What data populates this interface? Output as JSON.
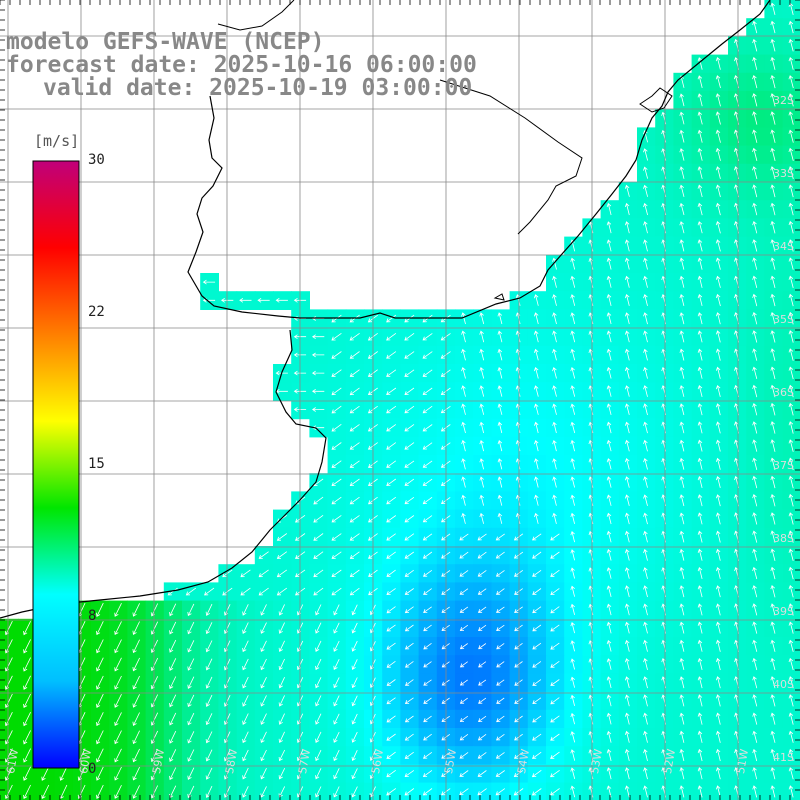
{
  "title": {
    "model": "modelo GEFS-WAVE (NCEP)",
    "forecast": "forecast date: 2025-10-16 06:00:00",
    "valid": "valid date: 2025-10-19 03:00:00"
  },
  "colorbar": {
    "unit": "[m/s]",
    "min": 0,
    "max": 30,
    "ticks": [
      "30",
      "22",
      "15",
      "8",
      "0"
    ],
    "tick_values": [
      30,
      22,
      15,
      8,
      0
    ],
    "colors": [
      "#0000ff",
      "#00bfff",
      "#00ffff",
      "#00e600",
      "#ffff00",
      "#ff7f00",
      "#ff0000",
      "#c0007a"
    ]
  },
  "axes": {
    "lat_labels": [
      "32S",
      "33S",
      "34S",
      "35S",
      "36S",
      "37S",
      "38S",
      "39S",
      "40S",
      "41S"
    ],
    "lon_labels": [
      "61W",
      "60W",
      "59W",
      "58W",
      "57W",
      "56W",
      "55W",
      "54W",
      "53W",
      "52W",
      "51W"
    ]
  },
  "field": {
    "parameter": "wind speed",
    "arrow_color": "#ffffff",
    "land_color": "#ffffff",
    "grid_color": "#999999"
  }
}
